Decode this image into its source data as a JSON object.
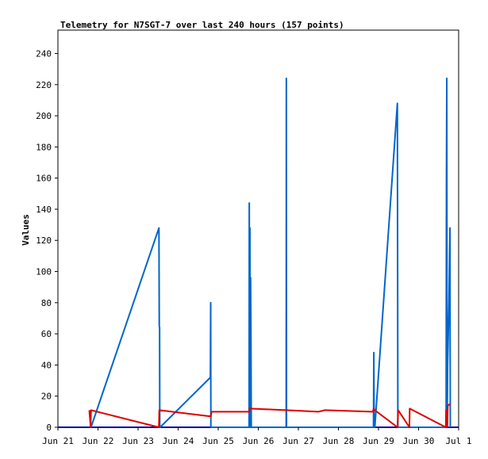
{
  "chart_data": {
    "type": "line",
    "title": "Telemetry for N7SGT-7 over last 240 hours (157 points)",
    "xlabel": "",
    "ylabel": "Values",
    "ylim": [
      0,
      255
    ],
    "yticks": [
      0,
      20,
      40,
      60,
      80,
      100,
      120,
      140,
      160,
      180,
      200,
      220,
      240
    ],
    "xlim": [
      0,
      240
    ],
    "x_unit": "hours from Jun 21 00:00",
    "xticks": [
      {
        "x": 0,
        "label": "Jun 21"
      },
      {
        "x": 24,
        "label": "Jun 22"
      },
      {
        "x": 48,
        "label": "Jun 23"
      },
      {
        "x": 72,
        "label": "Jun 24"
      },
      {
        "x": 96,
        "label": "Jun 25"
      },
      {
        "x": 120,
        "label": "Jun 26"
      },
      {
        "x": 144,
        "label": "Jun 27"
      },
      {
        "x": 168,
        "label": "Jun 28"
      },
      {
        "x": 192,
        "label": "Jun 29"
      },
      {
        "x": 216,
        "label": "Jun 30"
      },
      {
        "x": 240,
        "label": "Jul 1"
      }
    ],
    "grid": false,
    "series": [
      {
        "color": "#0000a0",
        "points": [
          [
            0,
            0
          ],
          [
            240,
            0
          ]
        ]
      },
      {
        "color": "#0066cc",
        "points": [
          [
            19.0,
            0
          ],
          [
            19.8,
            0
          ],
          [
            60.5,
            128
          ],
          [
            60.7,
            65
          ],
          [
            60.9,
            64
          ],
          [
            61.0,
            0
          ],
          [
            61.2,
            0
          ],
          [
            91.3,
            32
          ],
          [
            91.5,
            80
          ],
          [
            91.6,
            0
          ],
          [
            92.0,
            0
          ],
          [
            114.5,
            0
          ],
          [
            114.6,
            144
          ],
          [
            114.8,
            0
          ],
          [
            115.0,
            128
          ],
          [
            115.2,
            0
          ],
          [
            115.4,
            96
          ],
          [
            115.6,
            64
          ],
          [
            115.8,
            0
          ],
          [
            136.7,
            0
          ],
          [
            136.8,
            224
          ],
          [
            136.9,
            0
          ],
          [
            189.0,
            0
          ],
          [
            189.2,
            48
          ],
          [
            189.4,
            0
          ],
          [
            189.8,
            0
          ],
          [
            203.3,
            208
          ],
          [
            203.6,
            0
          ],
          [
            232.5,
            0
          ],
          [
            232.7,
            160
          ],
          [
            232.9,
            224
          ],
          [
            233.1,
            0
          ],
          [
            233.4,
            40
          ],
          [
            234.2,
            80
          ],
          [
            234.5,
            104
          ],
          [
            234.8,
            128
          ],
          [
            235.0,
            0
          ]
        ]
      },
      {
        "color": "#dd0000",
        "points": [
          [
            18.8,
            11
          ],
          [
            19.6,
            0
          ],
          [
            19.8,
            11
          ],
          [
            60.5,
            0
          ],
          [
            60.7,
            11
          ],
          [
            91.6,
            7
          ],
          [
            92.0,
            10
          ],
          [
            114.5,
            10
          ],
          [
            114.7,
            12
          ],
          [
            136.7,
            11
          ],
          [
            156.0,
            10
          ],
          [
            160.0,
            11
          ],
          [
            188.5,
            10
          ],
          [
            189.2,
            12
          ],
          [
            189.8,
            11
          ],
          [
            203.4,
            0
          ],
          [
            203.8,
            11
          ],
          [
            210.5,
            0
          ],
          [
            210.7,
            12
          ],
          [
            232.3,
            0
          ],
          [
            232.5,
            11
          ],
          [
            233.2,
            0
          ],
          [
            233.5,
            14
          ],
          [
            235.0,
            15
          ]
        ]
      }
    ]
  }
}
